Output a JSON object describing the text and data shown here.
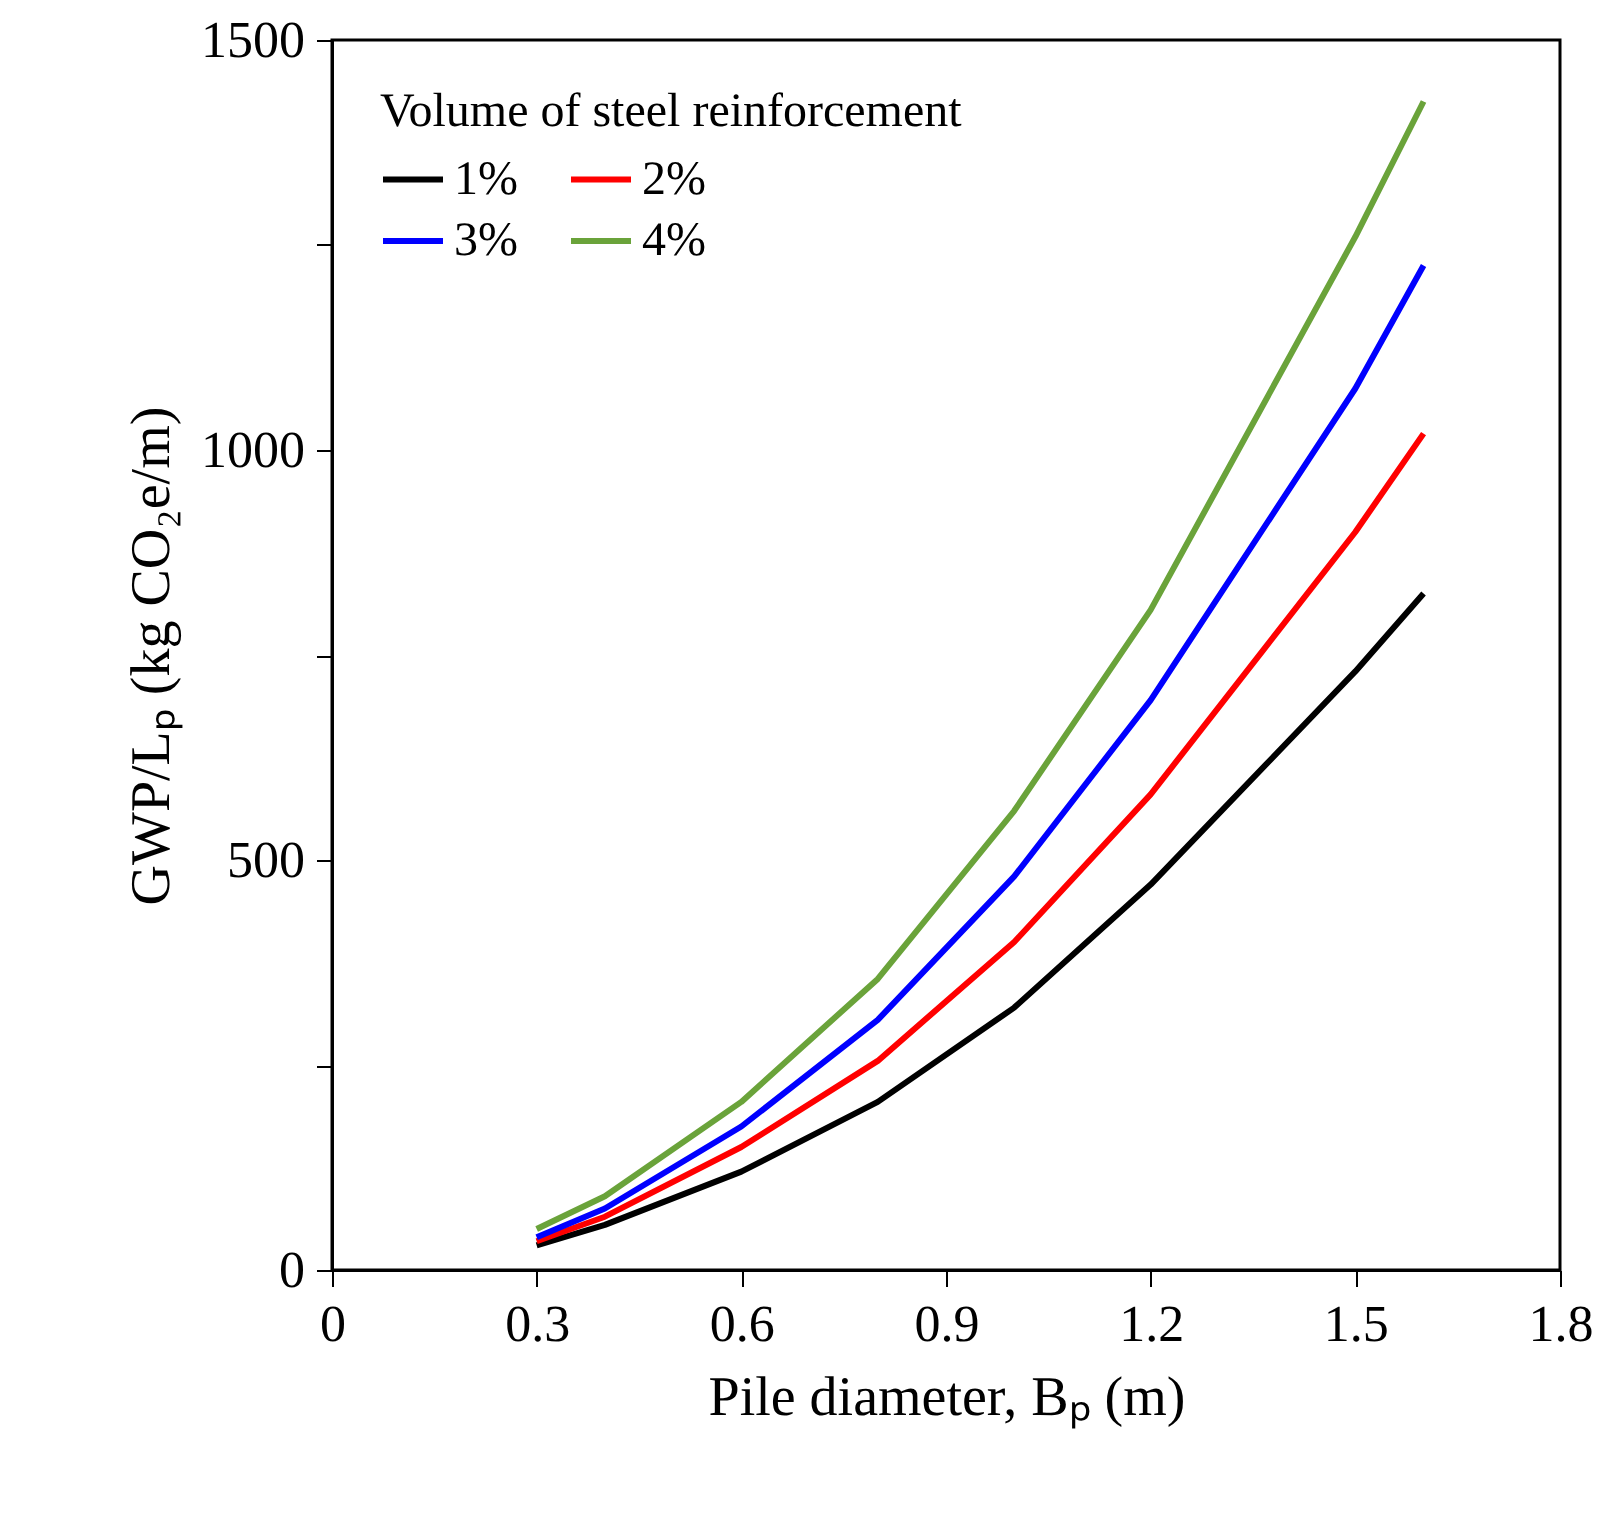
{
  "chart_data": {
    "type": "line",
    "xlabel": "Pile diameter, Bₚ (m)",
    "ylabel": "GWP/Lₚ (kg CO₂e/m)",
    "legend_title": "Volume of steel reinforcement",
    "x": [
      0.3,
      0.4,
      0.6,
      0.8,
      1.0,
      1.2,
      1.5,
      1.6
    ],
    "series": [
      {
        "name": "1%",
        "color": "#000000",
        "values": [
          30,
          55,
          120,
          205,
          320,
          470,
          730,
          825
        ]
      },
      {
        "name": "2%",
        "color": "#ff0000",
        "values": [
          35,
          65,
          150,
          255,
          400,
          580,
          900,
          1020
        ]
      },
      {
        "name": "3%",
        "color": "#0000ff",
        "values": [
          40,
          75,
          175,
          305,
          480,
          695,
          1075,
          1225
        ]
      },
      {
        "name": "4%",
        "color": "#6aa33a",
        "values": [
          50,
          90,
          205,
          355,
          560,
          805,
          1260,
          1425
        ]
      }
    ],
    "xlim": [
      0,
      1.8
    ],
    "xticks": [
      0,
      0.3,
      0.6,
      0.9,
      1.2,
      1.5,
      1.8
    ],
    "ylim": [
      0,
      1500
    ],
    "yticks": [
      0,
      {
        "value": 250,
        "label": null
      },
      500,
      {
        "value": 750,
        "label": null
      },
      1000,
      {
        "value": 1250,
        "label": null
      },
      1500
    ],
    "grid": false,
    "legend": "top left",
    "marker": "none",
    "line_style": "solid"
  }
}
